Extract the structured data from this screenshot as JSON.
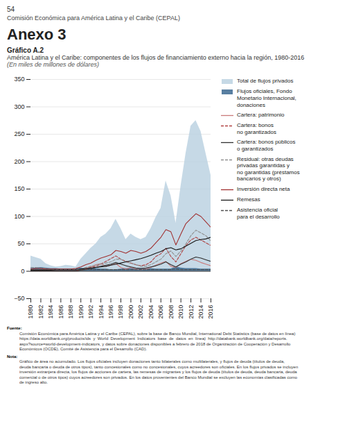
{
  "page_number": "54",
  "institution": "Comisión Económica para América Latina y el Caribe (CEPAL)",
  "heading": "Anexo 3",
  "chart_data": {
    "type": "area",
    "label": "Gráfico A.2",
    "title": "América Latina y el Caribe: componentes de los flujos de financiamiento externo hacia la región, 1980-2016",
    "subtitle": "(En miles de millones de dólares)",
    "x": [
      1980,
      1981,
      1982,
      1983,
      1984,
      1985,
      1986,
      1987,
      1988,
      1989,
      1990,
      1991,
      1992,
      1993,
      1994,
      1995,
      1996,
      1997,
      1998,
      1999,
      2000,
      2001,
      2002,
      2003,
      2004,
      2005,
      2006,
      2007,
      2008,
      2009,
      2010,
      2011,
      2012,
      2013,
      2014,
      2015,
      2016
    ],
    "xlim": [
      1980,
      2016
    ],
    "xticks": [
      1980,
      1982,
      1984,
      1986,
      1988,
      1990,
      1992,
      1994,
      1996,
      1998,
      2000,
      2002,
      2004,
      2006,
      2008,
      2010,
      2012,
      2014,
      2016
    ],
    "ylim": [
      -50,
      350
    ],
    "yticks": [
      -50,
      0,
      50,
      100,
      150,
      200,
      250,
      300,
      350
    ],
    "grid": "y",
    "legend": "right",
    "series": [
      {
        "name": "Total de flujos privados",
        "type": "area",
        "color": "#b8cfe0",
        "values": [
          28,
          25,
          22,
          14,
          10,
          8,
          9,
          11,
          10,
          8,
          22,
          32,
          42,
          50,
          62,
          68,
          78,
          95,
          78,
          58,
          68,
          62,
          58,
          62,
          78,
          98,
          115,
          165,
          138,
          88,
          155,
          215,
          265,
          275,
          255,
          215,
          175
        ]
      },
      {
        "name": "Flujos oficiales, Fondo\nMonetario Internacional,\ndonaciones",
        "type": "area",
        "color": "#2e5f8a",
        "values": [
          5,
          6,
          7,
          6,
          5,
          5,
          4,
          4,
          4,
          4,
          6,
          5,
          5,
          5,
          4,
          4,
          3,
          3,
          4,
          5,
          5,
          5,
          5,
          5,
          5,
          4,
          4,
          4,
          4,
          8,
          6,
          5,
          5,
          5,
          4,
          4,
          4
        ]
      },
      {
        "name": "Cartera: patrimonio",
        "type": "line",
        "line_style": "solid",
        "color": "#c97a7a",
        "values": [
          2,
          2,
          1,
          1,
          1,
          1,
          1,
          1,
          1,
          1,
          3,
          5,
          8,
          12,
          14,
          9,
          11,
          14,
          7,
          4,
          7,
          4,
          3,
          4,
          7,
          11,
          15,
          18,
          9,
          7,
          14,
          18,
          22,
          20,
          16,
          13,
          10
        ]
      },
      {
        "name": "Cartera: bonos\nno garantizados",
        "type": "line",
        "line_style": "dashed",
        "color": "#b04040",
        "values": [
          1,
          1,
          1,
          1,
          1,
          1,
          1,
          1,
          1,
          1,
          2,
          4,
          7,
          9,
          13,
          18,
          23,
          28,
          22,
          18,
          15,
          12,
          10,
          12,
          17,
          27,
          32,
          42,
          27,
          17,
          32,
          47,
          57,
          62,
          57,
          52,
          47
        ]
      },
      {
        "name": "Cartera: bonos públicos\no garantizados",
        "type": "line",
        "line_style": "solid",
        "color": "#303030",
        "values": [
          1,
          1,
          1,
          1,
          1,
          1,
          1,
          1,
          1,
          1,
          2,
          3,
          4,
          7,
          9,
          11,
          13,
          16,
          13,
          10,
          8,
          6,
          5,
          6,
          8,
          10,
          13,
          17,
          12,
          8,
          13,
          17,
          22,
          26,
          24,
          21,
          18
        ]
      },
      {
        "name": "Residual: otras deudas\nprivadas garantidas y\nno garantidas (préstamos\nbancarios y otros)",
        "type": "line",
        "line_style": "dashed",
        "color": "#909090",
        "values": [
          7,
          7,
          6,
          5,
          4,
          3,
          3,
          3,
          3,
          3,
          4,
          7,
          9,
          11,
          13,
          15,
          17,
          22,
          22,
          17,
          15,
          12,
          9,
          9,
          12,
          17,
          22,
          32,
          37,
          27,
          37,
          50,
          65,
          75,
          70,
          65,
          55
        ]
      },
      {
        "name": "Inversión directa neta",
        "type": "line",
        "line_style": "solid",
        "color": "#a03030",
        "values": [
          4,
          5,
          5,
          4,
          4,
          4,
          4,
          4,
          4,
          5,
          8,
          12,
          15,
          20,
          24,
          27,
          30,
          38,
          36,
          33,
          38,
          36,
          33,
          36,
          42,
          52,
          62,
          76,
          72,
          48,
          68,
          87,
          96,
          105,
          100,
          90,
          80
        ]
      },
      {
        "name": "Remesas",
        "type": "line",
        "line_style": "solid",
        "color": "#181818",
        "values": [
          2,
          2,
          2,
          2,
          2,
          3,
          3,
          3,
          3,
          3,
          4,
          5,
          6,
          7,
          8,
          9,
          11,
          13,
          15,
          17,
          19,
          21,
          23,
          26,
          29,
          33,
          36,
          41,
          43,
          39,
          41,
          46,
          51,
          56,
          58,
          59,
          62
        ]
      },
      {
        "name": "Asistencia oficial\npara el desarrollo",
        "type": "line",
        "line_style": "dashed",
        "color": "#505050",
        "values": [
          3,
          3,
          3,
          3,
          3,
          3,
          3,
          3,
          3,
          3,
          3,
          3,
          3,
          3,
          3,
          3,
          3,
          3,
          3,
          3,
          3,
          3,
          3,
          3,
          3,
          3,
          3,
          3,
          3,
          4,
          3,
          3,
          3,
          3,
          3,
          3,
          3
        ]
      }
    ]
  },
  "source": {
    "label": "Fuente:",
    "lines": [
      "Comisión Económica para América Latina y el Caribe (CEPAL), sobre la base de Banco Mundial, International Debt Statistics (base de datos en línea)",
      "https://data.worldbank.org/products/ids  y  World  Development  Indicators  base  de  datos  en  línea)  http://databank.worldbank.org/data/reports.",
      "aspx?source=world-development-indicators, y datos sobre donaciones disponibles a febrero de 2018 de Organización de Cooperación y Desarrollo",
      "Económicos (OCDE), Comité de Asistencia para el Desarrollo (CAD)."
    ]
  },
  "note": {
    "label": "Nota:",
    "lines": [
      "Gráfico de área no acumulado. Los flujos oficiales incluyen donaciones tanto bilaterales como multilaterales, y flujos de deuda (títulos de deuda,",
      "deuda bancaria o deuda de otros tipos), tanto concesionales como no concesionales, cuyos acreedores son oficiales. En los flujos privados se incluyen",
      "inversión extranjera directa, los flujos de acciones de cartera, las remesas de migrantes y los flujos de deuda (títulos de deuda, deuda bancaria, deuda",
      "comercial o de otros tipos) cuyos acreedores son privados. En los datos provenientes del Banco Mundial se excluyen las economías clasificadas como",
      "de ingreso alto."
    ]
  }
}
